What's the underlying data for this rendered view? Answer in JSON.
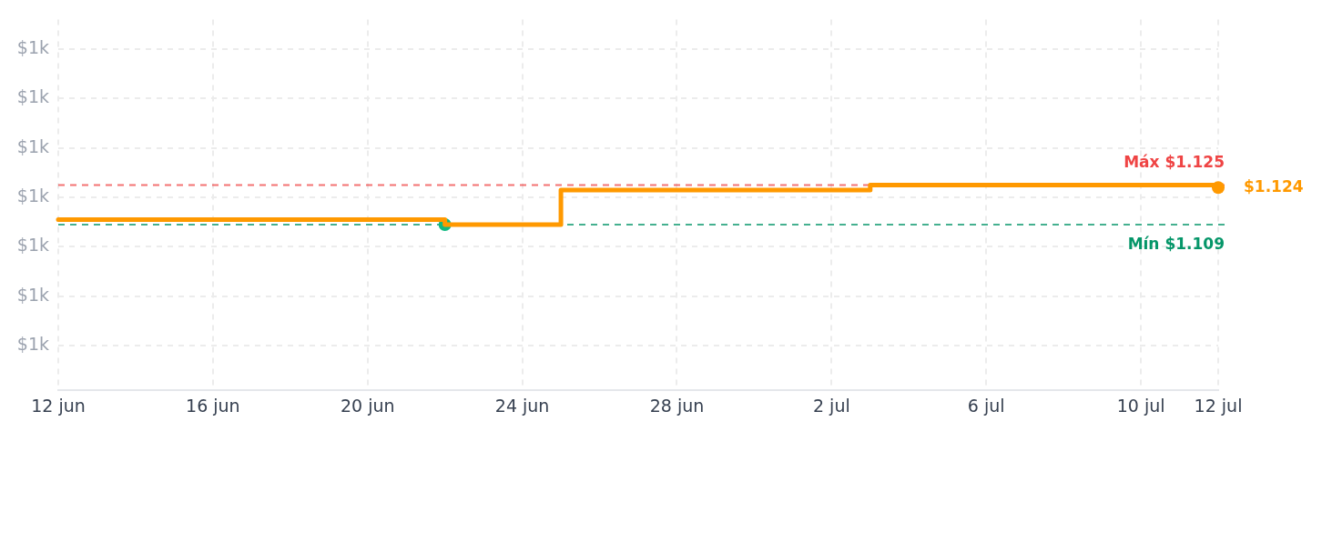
{
  "chart_data": {
    "type": "step",
    "xlim": [
      "--06-12",
      "--07-12"
    ],
    "xticks": [
      {
        "value": "--06-12",
        "label": "12 jun"
      },
      {
        "value": "--06-16",
        "label": "16 jun"
      },
      {
        "value": "--06-20",
        "label": "20 jun"
      },
      {
        "value": "--06-24",
        "label": "24 jun"
      },
      {
        "value": "--06-28",
        "label": "28 jun"
      },
      {
        "value": "--07-02",
        "label": "2 jul"
      },
      {
        "value": "--07-06",
        "label": "6 jul"
      },
      {
        "value": "--07-10",
        "label": "10 jul"
      },
      {
        "value": "--07-12",
        "label": "12 jul"
      }
    ],
    "ylim": [
      1042,
      1192
    ],
    "yticks": [
      {
        "value": 1060,
        "label": "$1k"
      },
      {
        "value": 1080,
        "label": "$1k"
      },
      {
        "value": 1100,
        "label": "$1k"
      },
      {
        "value": 1120,
        "label": "$1k"
      },
      {
        "value": 1140,
        "label": "$1k"
      },
      {
        "value": 1160,
        "label": "$1k"
      },
      {
        "value": 1180,
        "label": "$1k"
      }
    ],
    "grid": true,
    "series": [
      {
        "color": "#ff9900",
        "marker": "none",
        "x": [
          "--06-12",
          "--06-22",
          "--06-25",
          "--07-03",
          "--07-12"
        ],
        "values": [
          1111,
          1109,
          1123,
          1125,
          1124
        ]
      },
      {
        "type": "scatter",
        "color": "#10b981",
        "marker": "circle",
        "x": [
          "--06-22"
        ],
        "values": [
          1109
        ]
      },
      {
        "type": "scatter",
        "color": "#ff9900",
        "marker": "circle",
        "x": [
          "--07-12"
        ],
        "values": [
          1124
        ],
        "value_labels": [
          "$1.124"
        ]
      }
    ],
    "ref_lines": [
      {
        "axis": "y",
        "value": 1125,
        "label": "Máx $1.125",
        "color": "#ef4444",
        "line_style": "dashed"
      },
      {
        "axis": "y",
        "value": 1109,
        "label": "Mín $1.109",
        "color": "#059669",
        "line_style": "dashed"
      }
    ]
  }
}
